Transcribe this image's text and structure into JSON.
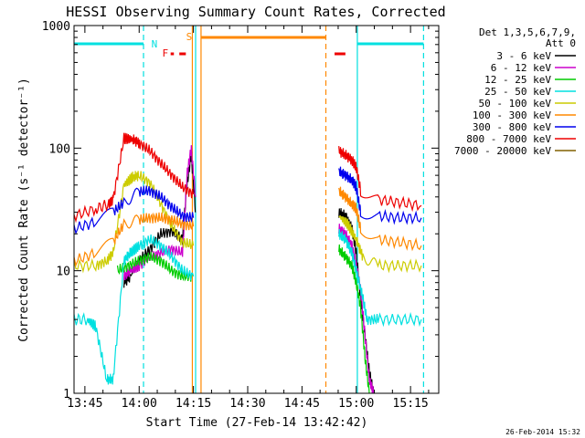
{
  "chart_data": {
    "type": "line",
    "title": "HESSI Observing Summary Count Rates, Corrected",
    "xlabel": "Start Time (27-Feb-14 13:42:42)",
    "ylabel": "Corrected Count Rate (s⁻¹ detector⁻¹)",
    "yscale": "log",
    "xlim_minutes": [
      13.7,
      15.38
    ],
    "ylim": [
      1,
      1000
    ],
    "xticks": [
      "13:45",
      "14:00",
      "14:15",
      "14:30",
      "14:45",
      "15:00",
      "15:15"
    ],
    "yticks": [
      "1",
      "10",
      "100",
      "1000"
    ],
    "legend": {
      "header": [
        "Det 1,3,5,6,7,9,",
        "Att 0"
      ],
      "placement": "right"
    },
    "footer_date": "26-Feb-2014 15:32",
    "series": [
      {
        "name": "3 - 6 keV",
        "color": "#000000",
        "segments": [
          [
            [
              13.93,
              8
            ],
            [
              13.96,
              9
            ],
            [
              14.0,
              12
            ],
            [
              14.05,
              15
            ],
            [
              14.1,
              20
            ],
            [
              14.15,
              21
            ],
            [
              14.2,
              18
            ],
            [
              14.22,
              50
            ],
            [
              14.24,
              90
            ],
            [
              14.26,
              30
            ]
          ],
          [
            [
              14.92,
              30
            ],
            [
              14.95,
              28
            ],
            [
              14.98,
              22
            ],
            [
              15.0,
              14
            ],
            [
              15.02,
              6
            ],
            [
              15.04,
              3
            ],
            [
              15.06,
              1.5
            ],
            [
              15.08,
              1
            ]
          ]
        ]
      },
      {
        "name": "6 - 12 keV",
        "color": "#cc00cc",
        "segments": [
          [
            [
              13.93,
              9
            ],
            [
              13.96,
              10
            ],
            [
              14.0,
              11
            ],
            [
              14.05,
              13
            ],
            [
              14.1,
              14
            ],
            [
              14.15,
              15
            ],
            [
              14.2,
              14
            ],
            [
              14.22,
              60
            ],
            [
              14.24,
              100
            ],
            [
              14.26,
              40
            ]
          ],
          [
            [
              14.92,
              22
            ],
            [
              14.95,
              20
            ],
            [
              14.98,
              16
            ],
            [
              15.0,
              11
            ],
            [
              15.02,
              7
            ],
            [
              15.04,
              3
            ],
            [
              15.06,
              1.3
            ],
            [
              15.08,
              1
            ]
          ]
        ]
      },
      {
        "name": "12 - 25 keV",
        "color": "#00cc00",
        "segments": [
          [
            [
              13.9,
              10
            ],
            [
              13.95,
              11
            ],
            [
              14.0,
              12
            ],
            [
              14.05,
              13
            ],
            [
              14.1,
              12
            ],
            [
              14.15,
              10
            ],
            [
              14.2,
              9
            ],
            [
              14.25,
              9
            ]
          ],
          [
            [
              14.92,
              15
            ],
            [
              14.95,
              13
            ],
            [
              14.98,
              11
            ],
            [
              15.0,
              8
            ],
            [
              15.02,
              5
            ],
            [
              15.04,
              2
            ],
            [
              15.06,
              1
            ]
          ]
        ]
      },
      {
        "name": "25 - 50 keV",
        "color": "#00e0e0",
        "segments": [
          [
            [
              13.7,
              4
            ],
            [
              13.76,
              4
            ],
            [
              13.8,
              3.5
            ],
            [
              13.85,
              1.3
            ],
            [
              13.88,
              1.3
            ],
            [
              13.93,
              12
            ],
            [
              13.96,
              14
            ],
            [
              14.0,
              16
            ],
            [
              14.05,
              18
            ],
            [
              14.1,
              16
            ],
            [
              14.15,
              13
            ],
            [
              14.2,
              10
            ],
            [
              14.25,
              9
            ]
          ],
          [
            [
              14.92,
              20
            ],
            [
              14.95,
              18
            ],
            [
              14.98,
              14
            ],
            [
              15.0,
              10
            ],
            [
              15.03,
              6
            ],
            [
              15.05,
              4
            ],
            [
              15.1,
              4
            ],
            [
              15.2,
              4
            ],
            [
              15.3,
              4
            ]
          ]
        ]
      },
      {
        "name": "50 - 100 keV",
        "color": "#cccc00",
        "segments": [
          [
            [
              13.7,
              11
            ],
            [
              13.8,
              11
            ],
            [
              13.85,
              12
            ],
            [
              13.88,
              14
            ],
            [
              13.93,
              50
            ],
            [
              13.97,
              58
            ],
            [
              14.0,
              60
            ],
            [
              14.05,
              52
            ],
            [
              14.1,
              35
            ],
            [
              14.15,
              23
            ],
            [
              14.2,
              17
            ],
            [
              14.25,
              16
            ]
          ],
          [
            [
              14.92,
              28
            ],
            [
              14.96,
              24
            ],
            [
              15.0,
              18
            ],
            [
              15.03,
              13
            ],
            [
              15.1,
              11
            ],
            [
              15.2,
              11
            ],
            [
              15.3,
              11
            ]
          ]
        ]
      },
      {
        "name": "100 - 300 keV",
        "color": "#ff8800",
        "segments": [
          [
            [
              13.7,
              12
            ],
            [
              13.8,
              14
            ],
            [
              13.88,
              17
            ],
            [
              13.93,
              24
            ],
            [
              14.0,
              26
            ],
            [
              14.05,
              27
            ],
            [
              14.1,
              27
            ],
            [
              14.15,
              26
            ],
            [
              14.2,
              24
            ],
            [
              14.25,
              23
            ]
          ],
          [
            [
              14.92,
              45
            ],
            [
              14.95,
              40
            ],
            [
              14.98,
              35
            ],
            [
              15.0,
              32
            ],
            [
              15.02,
              22
            ],
            [
              15.1,
              18
            ],
            [
              15.2,
              17
            ],
            [
              15.3,
              16
            ]
          ]
        ]
      },
      {
        "name": "300 - 800 keV",
        "color": "#0000ee",
        "segments": [
          [
            [
              13.7,
              22
            ],
            [
              13.8,
              25
            ],
            [
              13.88,
              30
            ],
            [
              13.93,
              36
            ],
            [
              14.0,
              44
            ],
            [
              14.05,
              45
            ],
            [
              14.1,
              40
            ],
            [
              14.15,
              33
            ],
            [
              14.2,
              28
            ],
            [
              14.25,
              27
            ]
          ],
          [
            [
              14.92,
              65
            ],
            [
              14.95,
              60
            ],
            [
              14.98,
              55
            ],
            [
              15.0,
              48
            ],
            [
              15.02,
              30
            ],
            [
              15.1,
              28
            ],
            [
              15.2,
              27
            ],
            [
              15.3,
              27
            ]
          ]
        ]
      },
      {
        "name": "800 - 7000 keV",
        "color": "#ee0000",
        "segments": [
          [
            [
              13.7,
              28
            ],
            [
              13.8,
              32
            ],
            [
              13.86,
              35
            ],
            [
              13.88,
              38
            ],
            [
              13.93,
              120
            ],
            [
              13.97,
              118
            ],
            [
              14.0,
              110
            ],
            [
              14.05,
              95
            ],
            [
              14.1,
              75
            ],
            [
              14.15,
              60
            ],
            [
              14.2,
              48
            ],
            [
              14.25,
              42
            ]
          ],
          [
            [
              14.92,
              95
            ],
            [
              14.95,
              88
            ],
            [
              14.98,
              80
            ],
            [
              15.0,
              70
            ],
            [
              15.02,
              45
            ],
            [
              15.1,
              38
            ],
            [
              15.2,
              36
            ],
            [
              15.3,
              34
            ]
          ]
        ]
      },
      {
        "name": "7000 - 20000 keV",
        "color": "#806000",
        "segments": []
      }
    ],
    "flags": [
      {
        "label": "N",
        "color": "#00e0e0"
      },
      {
        "label": "S",
        "color": "#ff8800"
      },
      {
        "label": "F",
        "color": "#ee0000"
      }
    ]
  }
}
